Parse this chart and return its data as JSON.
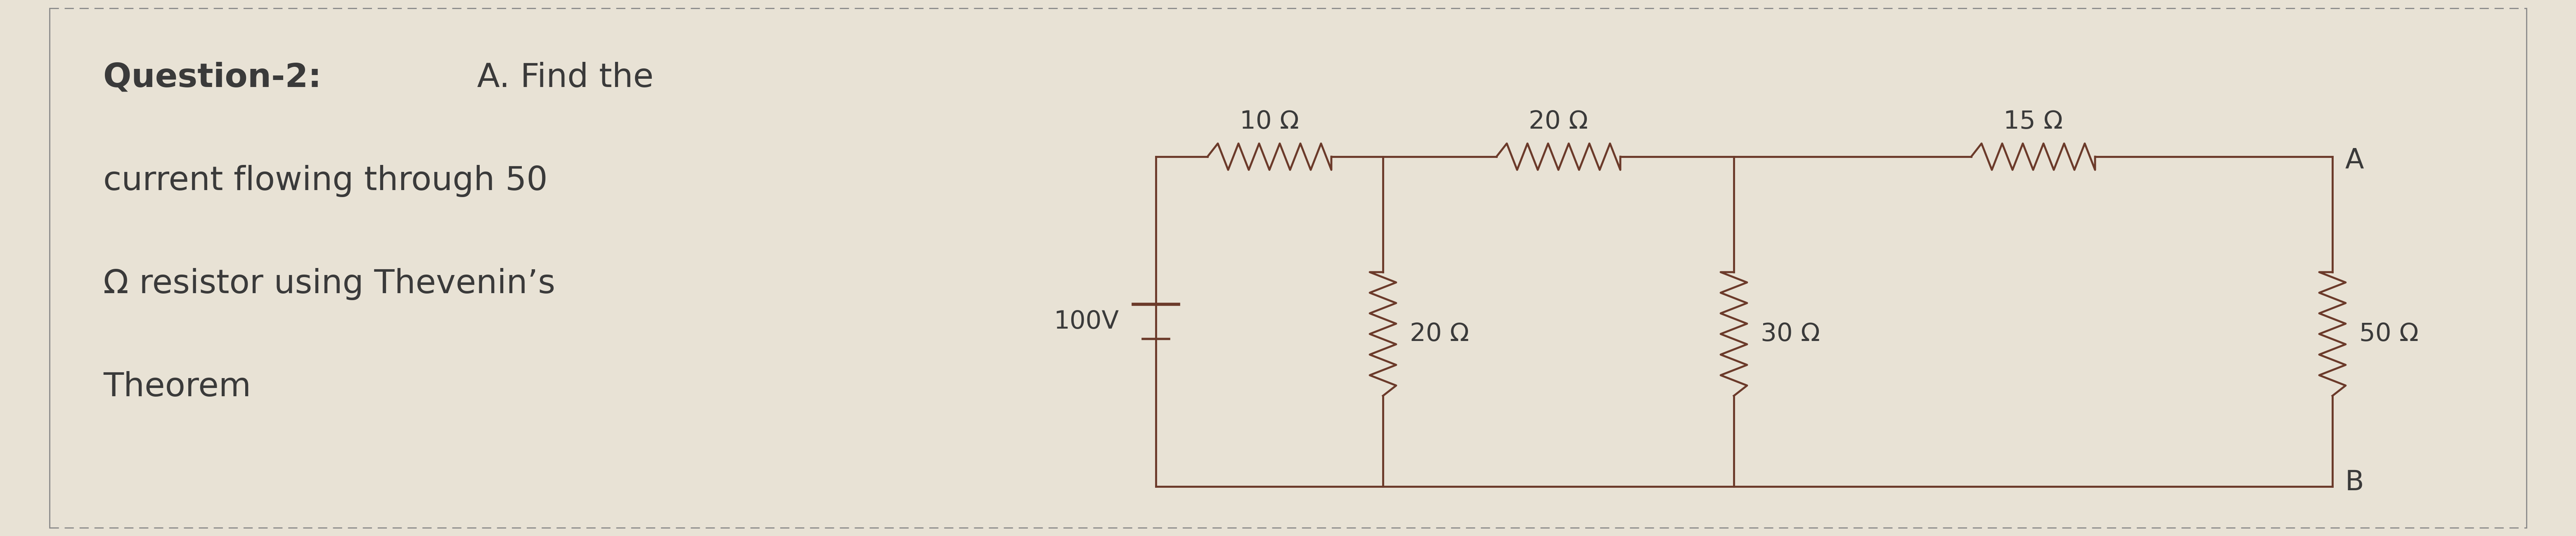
{
  "bg_color": "#e8e2d5",
  "wire_color": "#6b3a2a",
  "text_color": "#3a3a3a",
  "title_bold": "Question-2:",
  "title_rest_line1": " A. Find the",
  "title_line2": "current flowing through 50",
  "title_line3": "Ω resistor using Thevenin’s",
  "title_line4": "Theorem",
  "voltage_label": "100V",
  "resistors_top": [
    "10 Ω",
    "20 Ω",
    "15 Ω"
  ],
  "resistors_vert": [
    "20 Ω",
    "30 Ω",
    "50 Ω"
  ],
  "label_A": "A",
  "label_B": "B",
  "fig_width": 62.4,
  "fig_height": 13.0,
  "dpi": 100
}
